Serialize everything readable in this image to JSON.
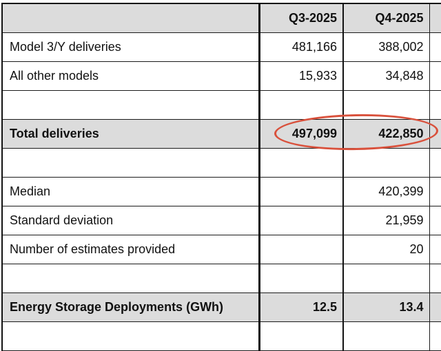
{
  "table": {
    "header": [
      "",
      "Q3-2025",
      "Q4-2025",
      ""
    ],
    "rows": [
      {
        "label": "Model 3/Y deliveries",
        "q3": "481,166",
        "q4": "388,002"
      },
      {
        "label": "All other models",
        "q3": "15,933",
        "q4": "34,848"
      },
      {
        "label": "",
        "q3": "",
        "q4": ""
      },
      {
        "label": "Total deliveries",
        "q3": "497,099",
        "q4": "422,850"
      },
      {
        "label": "",
        "q3": "",
        "q4": ""
      },
      {
        "label": "Median",
        "q3": "",
        "q4": "420,399"
      },
      {
        "label": "Standard deviation",
        "q3": "",
        "q4": "21,959"
      },
      {
        "label": "Number of estimates provided",
        "q3": "",
        "q4": "20"
      },
      {
        "label": "",
        "q3": "",
        "q4": ""
      },
      {
        "label": "Energy Storage Deployments (GWh)",
        "q3": "12.5",
        "q4": "13.4"
      },
      {
        "label": "",
        "q3": "",
        "q4": ""
      }
    ]
  },
  "annotation": {
    "type": "red-ellipse",
    "color": "#d9513c",
    "highlights": "Total deliveries values"
  }
}
